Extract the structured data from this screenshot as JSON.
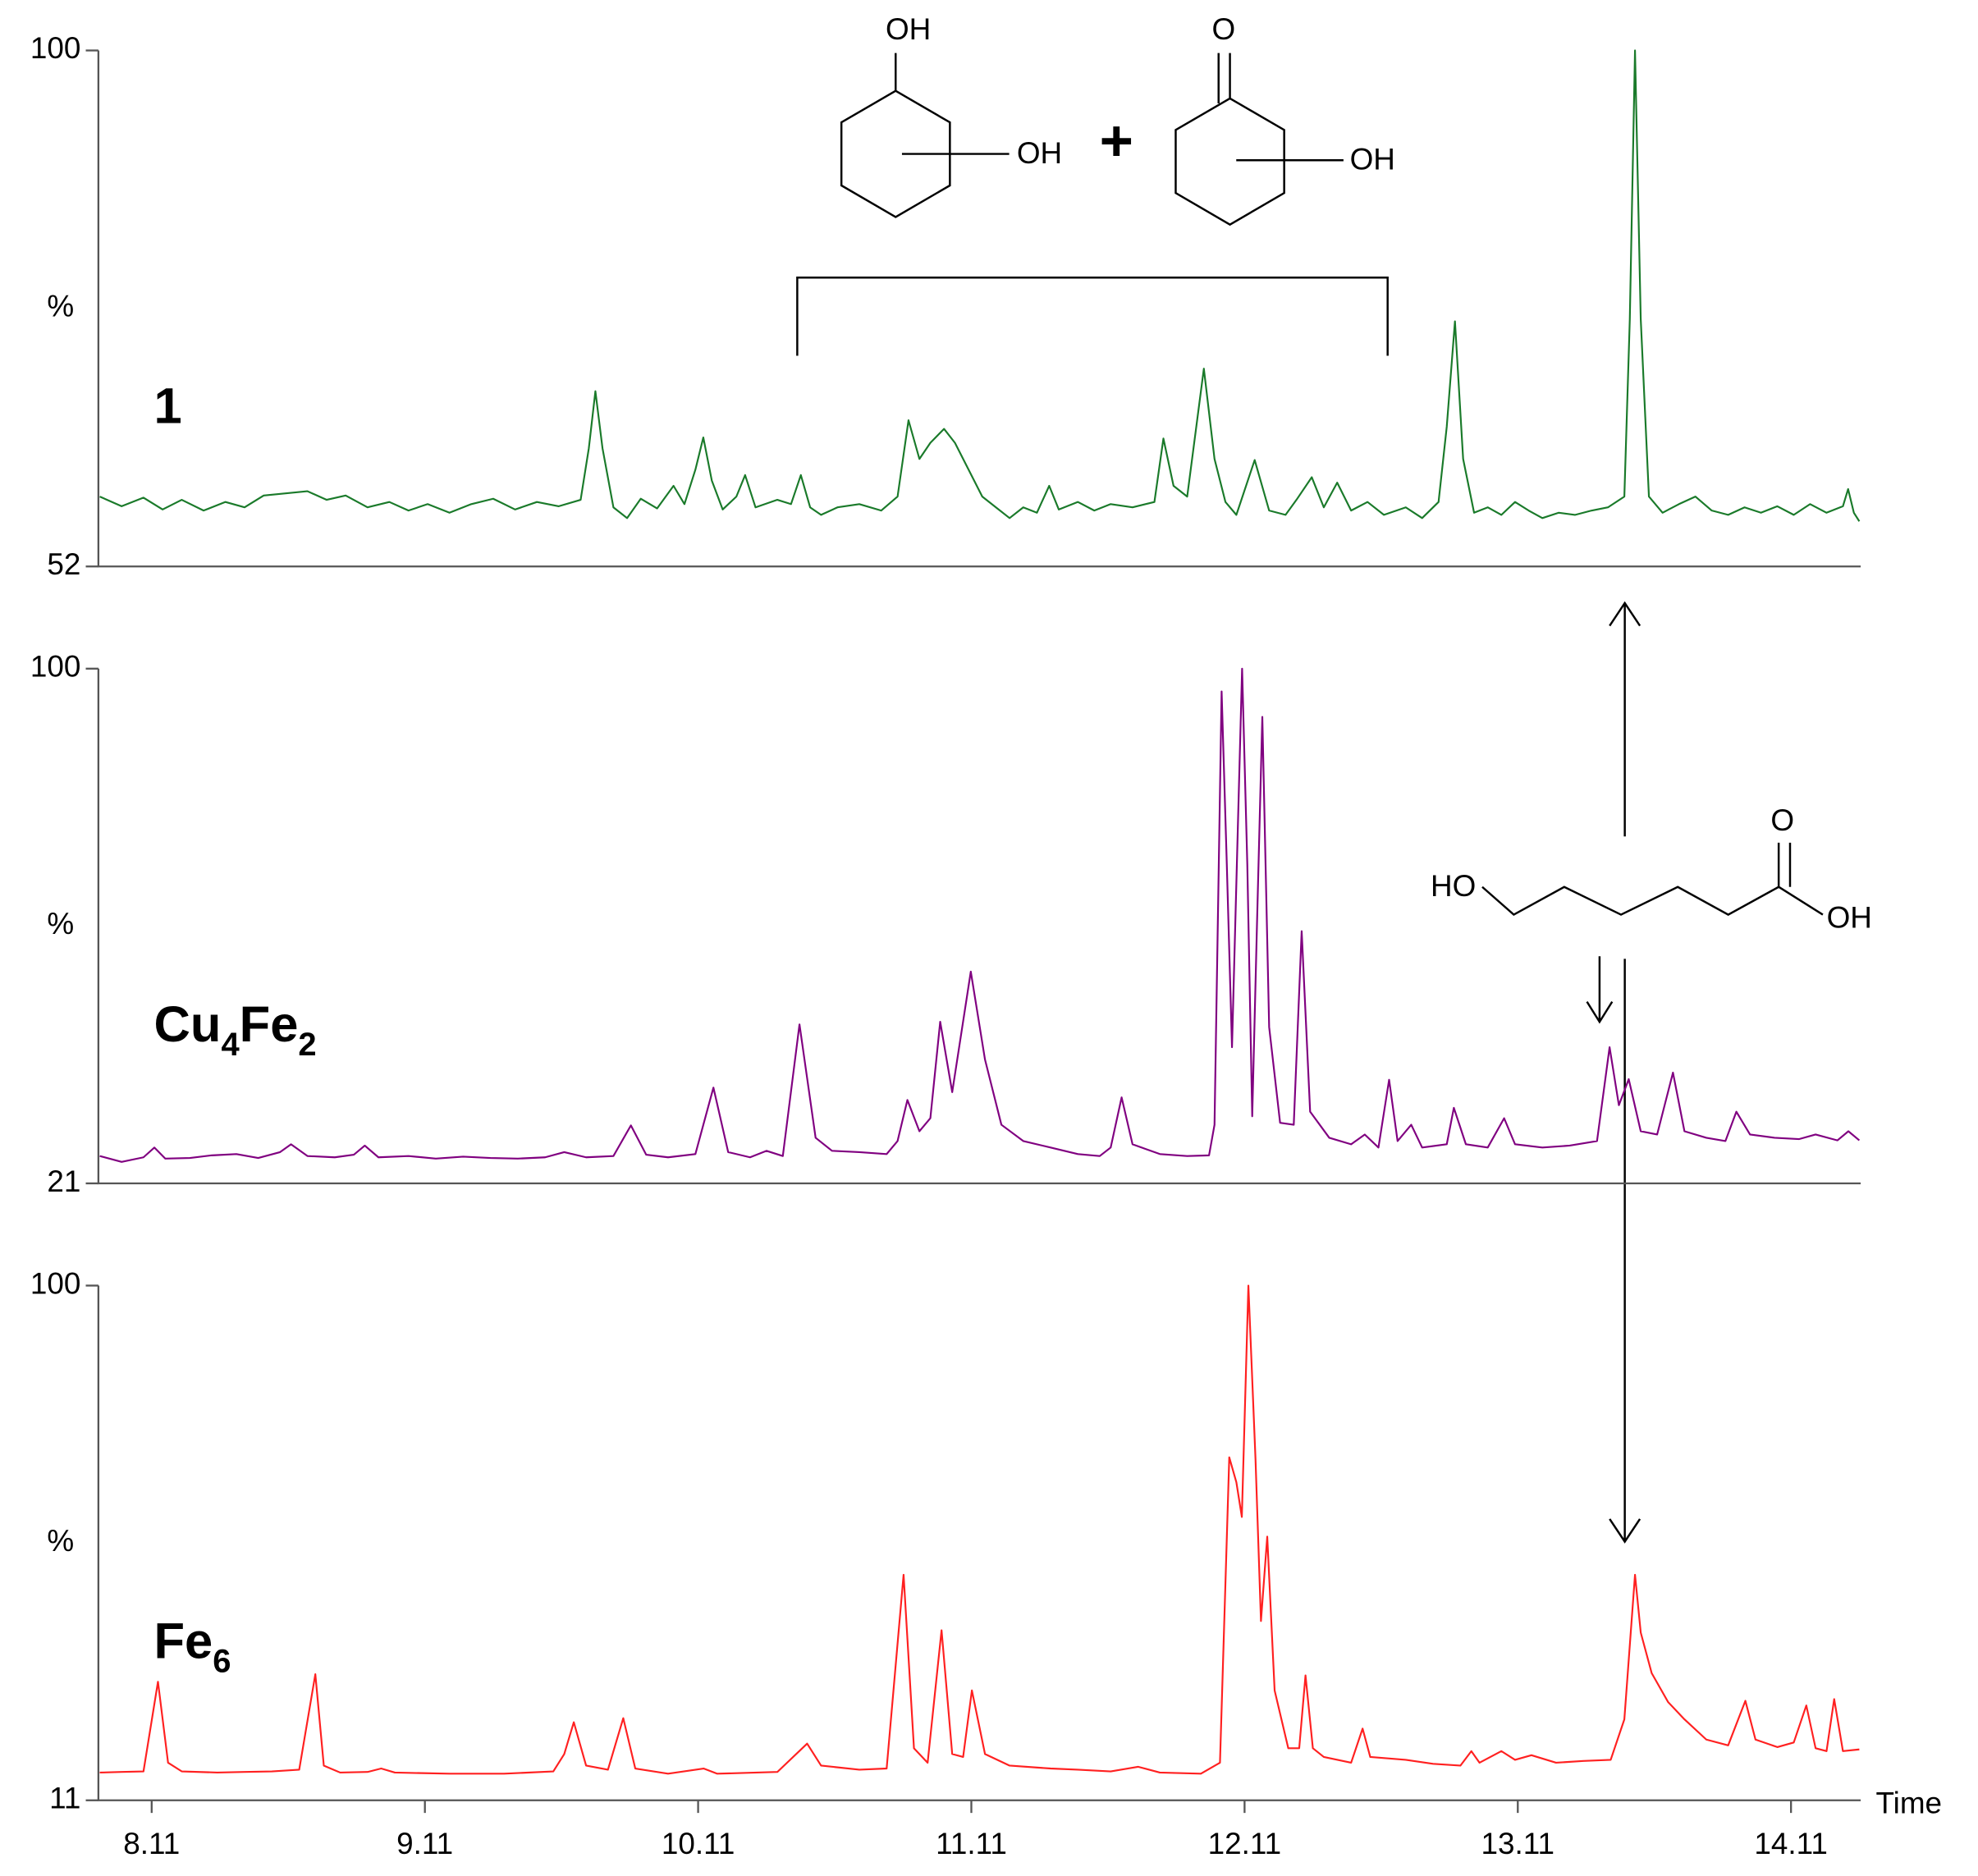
{
  "chart_data": [
    {
      "type": "line",
      "label": [
        "1"
      ],
      "ylabel": "%",
      "ylim": [
        52,
        100
      ],
      "yticks": [
        52,
        100
      ],
      "xlim": [
        7.915,
        14.365
      ],
      "series": [
        {
          "color": "#1a7a2a",
          "x": [
            7.92,
            8.0,
            8.08,
            8.15,
            8.22,
            8.3,
            8.38,
            8.45,
            8.52,
            8.6,
            8.68,
            8.75,
            8.82,
            8.9,
            8.98,
            9.05,
            9.12,
            9.2,
            9.28,
            9.36,
            9.44,
            9.52,
            9.6,
            9.68,
            9.71,
            9.734,
            9.76,
            9.8,
            9.85,
            9.9,
            9.96,
            10.02,
            10.06,
            10.1,
            10.129,
            10.16,
            10.2,
            10.25,
            10.282,
            10.32,
            10.4,
            10.45,
            10.486,
            10.52,
            10.56,
            10.62,
            10.7,
            10.78,
            10.84,
            10.88,
            10.92,
            10.96,
            11.01,
            11.05,
            11.1,
            11.15,
            11.2,
            11.25,
            11.3,
            11.35,
            11.395,
            11.43,
            11.5,
            11.56,
            11.62,
            11.7,
            11.78,
            11.813,
            11.85,
            11.9,
            11.961,
            12.0,
            12.04,
            12.08,
            12.147,
            12.2,
            12.26,
            12.3,
            12.356,
            12.4,
            12.449,
            12.5,
            12.56,
            12.62,
            12.7,
            12.76,
            12.82,
            12.85,
            12.88,
            12.91,
            12.95,
            13.0,
            13.05,
            13.1,
            13.15,
            13.2,
            13.26,
            13.32,
            13.38,
            13.44,
            13.5,
            13.52,
            13.539,
            13.56,
            13.59,
            13.64,
            13.7,
            13.76,
            13.82,
            13.88,
            13.94,
            14.0,
            14.06,
            14.12,
            14.18,
            14.24,
            14.3,
            14.319,
            14.34,
            14.36
          ],
          "values": [
            58.5,
            57.6,
            58.4,
            57.3,
            58.2,
            57.2,
            58.0,
            57.5,
            58.6,
            58.8,
            59.0,
            58.2,
            58.6,
            57.5,
            58.0,
            57.2,
            57.8,
            57.0,
            57.8,
            58.3,
            57.3,
            58.0,
            57.6,
            58.2,
            63,
            68.3,
            63,
            57.5,
            56.5,
            58.3,
            57.4,
            59.5,
            57.8,
            61,
            64,
            60,
            57.3,
            58.5,
            60.5,
            57.5,
            58.2,
            57.8,
            60.5,
            57.5,
            56.8,
            57.5,
            57.8,
            57.2,
            58.5,
            65.6,
            62,
            63.5,
            64.8,
            63.5,
            61,
            58.5,
            57.5,
            56.5,
            57.5,
            57.0,
            59.5,
            57.3,
            58.0,
            57.2,
            57.8,
            57.5,
            58.0,
            63.9,
            59.5,
            58.5,
            70.4,
            62,
            58,
            56.8,
            61.9,
            57.2,
            56.8,
            58.2,
            60.3,
            57.5,
            59.8,
            57.2,
            58.0,
            56.8,
            57.5,
            56.5,
            58.0,
            65,
            74.8,
            62,
            57.0,
            57.5,
            56.8,
            58.0,
            57.2,
            56.5,
            57.0,
            56.8,
            57.2,
            57.5,
            58.5,
            75,
            100,
            75,
            58.5,
            57.0,
            57.8,
            58.5,
            57.2,
            56.8,
            57.5,
            57.0,
            57.6,
            56.8,
            57.8,
            57.0,
            57.6,
            59.2,
            57.0,
            56.2
          ]
        }
      ]
    },
    {
      "type": "line",
      "label": [
        "Cu",
        "4",
        "Fe",
        "2"
      ],
      "ylabel": "%",
      "ylim": [
        21,
        100
      ],
      "yticks": [
        21,
        100
      ],
      "xlim": [
        7.915,
        14.365
      ],
      "series": [
        {
          "color": "#800080",
          "x": [
            7.92,
            8.0,
            8.08,
            8.12,
            8.16,
            8.25,
            8.33,
            8.42,
            8.5,
            8.58,
            8.62,
            8.68,
            8.78,
            8.85,
            8.89,
            8.94,
            9.05,
            9.15,
            9.25,
            9.35,
            9.45,
            9.55,
            9.62,
            9.7,
            9.8,
            9.864,
            9.92,
            10.0,
            10.1,
            10.166,
            10.22,
            10.3,
            10.36,
            10.42,
            10.481,
            10.54,
            10.6,
            10.7,
            10.8,
            10.84,
            10.876,
            10.92,
            10.96,
            10.996,
            11.04,
            11.108,
            11.16,
            11.22,
            11.3,
            11.4,
            11.5,
            11.58,
            11.62,
            11.66,
            11.7,
            11.8,
            11.9,
            11.98,
            12.0,
            12.026,
            12.045,
            12.064,
            12.085,
            12.101,
            12.12,
            12.138,
            12.155,
            12.175,
            12.2,
            12.24,
            12.29,
            12.319,
            12.35,
            12.42,
            12.5,
            12.55,
            12.6,
            12.639,
            12.67,
            12.72,
            12.76,
            12.85,
            12.876,
            12.92,
            13.0,
            13.06,
            13.1,
            13.2,
            13.3,
            13.4,
            13.446,
            13.48,
            13.516,
            13.56,
            13.62,
            13.678,
            13.72,
            13.8,
            13.87,
            13.91,
            13.96,
            14.05,
            14.14,
            14.2,
            14.28,
            14.32,
            14.36
          ],
          "values": [
            25.2,
            24.3,
            25.0,
            26.5,
            24.8,
            24.9,
            25.3,
            25.5,
            24.9,
            25.8,
            27.0,
            25.2,
            25.0,
            25.4,
            26.8,
            25.0,
            25.2,
            24.8,
            25.1,
            24.9,
            24.8,
            25.0,
            25.8,
            25.0,
            25.2,
            29.9,
            25.4,
            25.0,
            25.5,
            35.7,
            25.8,
            25.0,
            26.0,
            25.2,
            45.4,
            28.0,
            26.0,
            25.8,
            25.5,
            27.5,
            33.8,
            29,
            31,
            45.8,
            35,
            53.5,
            40,
            30,
            27.5,
            26.5,
            25.5,
            25.2,
            26.5,
            34.2,
            27,
            25.5,
            25.2,
            25.3,
            30,
            96.5,
            70,
            41.9,
            75,
            100,
            70,
            31.3,
            60,
            92.6,
            45,
            30.3,
            30.0,
            59.7,
            32,
            28.0,
            27.0,
            28.5,
            26.5,
            36.9,
            27.5,
            30.0,
            26.5,
            27.0,
            32.6,
            27.0,
            26.5,
            31.0,
            27.0,
            26.5,
            26.8,
            27.5,
            41.9,
            33,
            37,
            29,
            28.5,
            38,
            29,
            28.0,
            27.5,
            32.0,
            28.5,
            28.0,
            27.8,
            28.5,
            27.6,
            29.0,
            27.6
          ]
        }
      ]
    },
    {
      "type": "line",
      "label": [
        "Fe",
        "6"
      ],
      "ylabel": "%",
      "ylim": [
        11,
        100
      ],
      "yticks": [
        11,
        100
      ],
      "xlim": [
        7.915,
        14.365
      ],
      "xlabel": "Time",
      "xticks": [
        8.11,
        9.11,
        10.11,
        11.11,
        12.11,
        13.11,
        14.11
      ],
      "series": [
        {
          "color": "#ff2020",
          "x": [
            7.92,
            8.0,
            8.08,
            8.133,
            8.17,
            8.22,
            8.35,
            8.45,
            8.55,
            8.65,
            8.709,
            8.74,
            8.8,
            8.9,
            8.95,
            9.0,
            9.2,
            9.4,
            9.58,
            9.62,
            9.655,
            9.7,
            9.78,
            9.836,
            9.88,
            10.0,
            10.13,
            10.18,
            10.4,
            10.509,
            10.56,
            10.7,
            10.8,
            10.862,
            10.9,
            10.95,
            11.001,
            11.04,
            11.08,
            11.112,
            11.16,
            11.25,
            11.4,
            11.5,
            11.62,
            11.72,
            11.8,
            11.95,
            12.02,
            12.054,
            12.08,
            12.1,
            12.124,
            12.15,
            12.17,
            12.193,
            12.22,
            12.27,
            12.31,
            12.333,
            12.36,
            12.4,
            12.5,
            12.542,
            12.57,
            12.7,
            12.8,
            12.9,
            12.94,
            12.97,
            13.05,
            13.1,
            13.16,
            13.25,
            13.35,
            13.45,
            13.5,
            13.539,
            13.56,
            13.6,
            13.66,
            13.72,
            13.8,
            13.88,
            13.943,
            13.98,
            14.06,
            14.12,
            14.166,
            14.2,
            14.24,
            14.268,
            14.3,
            14.36
          ],
          "values": [
            15.8,
            15.9,
            16.0,
            31.5,
            17.5,
            16.0,
            15.8,
            15.9,
            16.0,
            16.3,
            32.8,
            17.0,
            15.8,
            15.9,
            16.5,
            15.8,
            15.6,
            15.6,
            16.0,
            19.0,
            24.5,
            17.0,
            16.3,
            25.2,
            16.5,
            15.6,
            16.5,
            15.6,
            15.9,
            20.8,
            17.0,
            16.3,
            16.5,
            50,
            20,
            17.5,
            40.4,
            19,
            18.5,
            30,
            19,
            17.0,
            16.5,
            16.3,
            16.0,
            16.8,
            15.8,
            15.6,
            17.5,
            70.3,
            66,
            60,
            100,
            70,
            42,
            56.6,
            30,
            20,
            20,
            32.6,
            20,
            18.5,
            17.5,
            23.4,
            18.5,
            18.0,
            17.3,
            17.0,
            19.5,
            17.5,
            19.5,
            18.0,
            18.8,
            17.5,
            17.8,
            18.0,
            25,
            50,
            40,
            33,
            28,
            25,
            21.5,
            20.5,
            28.2,
            21.5,
            20.2,
            21.0,
            27.4,
            20.0,
            19.5,
            28.5,
            19.5,
            19.8
          ]
        }
      ]
    }
  ],
  "annotations": {
    "diol": [
      "OH",
      "OH"
    ],
    "plus": "+",
    "ketol": [
      "O",
      "OH"
    ],
    "acid": [
      "HO",
      "O",
      "OH"
    ]
  }
}
